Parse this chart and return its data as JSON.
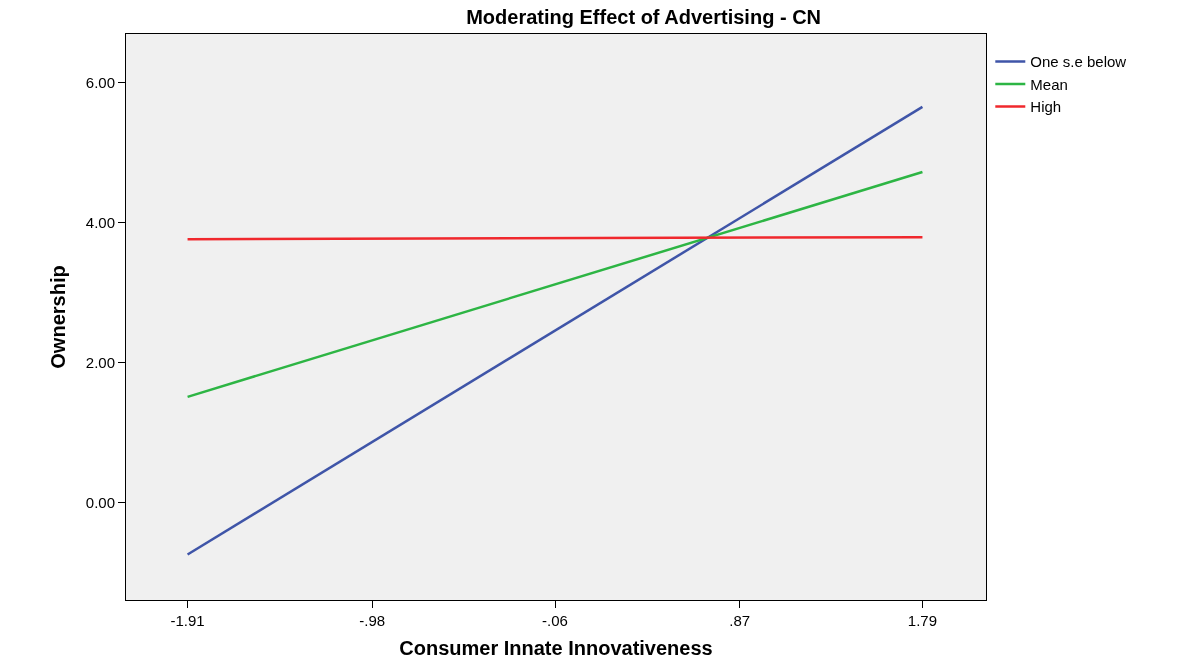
{
  "chart_data": {
    "type": "line",
    "title": "Moderating Effect of Advertising - CN",
    "xlabel": "Consumer Innate Innovativeness",
    "ylabel": "Ownership",
    "x": [
      -1.91,
      1.79
    ],
    "series": [
      {
        "name": "One s.e below",
        "color": "#3f55a8",
        "values": [
          -0.74,
          5.65
        ]
      },
      {
        "name": "Mean",
        "color": "#2db544",
        "values": [
          1.51,
          4.72
        ]
      },
      {
        "name": "High",
        "color": "#f0282d",
        "values": [
          3.76,
          3.79
        ]
      }
    ],
    "xlim": [
      -2.22,
      2.11
    ],
    "ylim": [
      -1.39,
      6.69
    ],
    "xticks": [
      {
        "value": -1.91,
        "label": "-1.91"
      },
      {
        "value": -0.98,
        "label": "-.98"
      },
      {
        "value": -0.06,
        "label": "-.06"
      },
      {
        "value": 0.87,
        "label": ".87"
      },
      {
        "value": 1.79,
        "label": "1.79"
      }
    ],
    "yticks": [
      {
        "value": 0,
        "label": "0.00"
      },
      {
        "value": 2,
        "label": "2.00"
      },
      {
        "value": 4,
        "label": "4.00"
      },
      {
        "value": 6,
        "label": "6.00"
      }
    ],
    "grid": false,
    "legend": "top right",
    "marker": "none",
    "line_style": "solid"
  }
}
